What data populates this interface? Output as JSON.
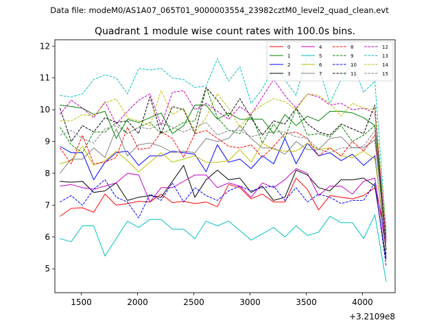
{
  "header": {
    "data_file": "Data file: modeM0/AS1A07_065T01_9000003554_23982cztM0_level2_quad_clean.evt"
  },
  "chart_data": {
    "type": "line",
    "title": "Quadrant 1 module wise count rates with 100.0s bins.",
    "xlabel": "",
    "ylabel": "",
    "x_offset_label": "+3.2109e8",
    "xlim": [
      1265,
      4290
    ],
    "ylim": [
      4.25,
      12.2
    ],
    "x_ticks": [
      1500,
      2000,
      2500,
      3000,
      3500,
      4000
    ],
    "y_ticks": [
      5,
      6,
      7,
      8,
      9,
      10,
      11,
      12
    ],
    "legend_position": "top-right",
    "x": [
      1310,
      1410,
      1510,
      1610,
      1710,
      1810,
      1910,
      2010,
      2110,
      2210,
      2310,
      2410,
      2510,
      2610,
      2710,
      2810,
      2910,
      3010,
      3110,
      3210,
      3310,
      3410,
      3510,
      3610,
      3710,
      3810,
      3910,
      4010,
      4110,
      4210
    ],
    "series": [
      {
        "name": "0",
        "color": "#ff0000",
        "dash": "solid",
        "values": [
          6.65,
          6.9,
          6.92,
          6.78,
          7.35,
          7.0,
          7.05,
          7.12,
          7.1,
          7.35,
          7.08,
          7.12,
          7.05,
          7.1,
          6.95,
          7.65,
          7.55,
          7.2,
          7.35,
          7.1,
          7.1,
          7.85,
          7.5,
          6.85,
          7.3,
          7.25,
          7.2,
          7.3,
          7.55,
          6.1
        ]
      },
      {
        "name": "1",
        "color": "#008000",
        "dash": "solid",
        "values": [
          10.15,
          10.1,
          10.05,
          9.85,
          9.95,
          9.1,
          9.7,
          9.6,
          9.75,
          9.9,
          9.25,
          9.5,
          10.15,
          10.15,
          9.7,
          9.9,
          9.7,
          9.7,
          9.7,
          9.25,
          9.85,
          9.5,
          9.8,
          9.65,
          9.95,
          9.95,
          9.9,
          9.75,
          9.5,
          5.9
        ]
      },
      {
        "name": "2",
        "color": "#0000ff",
        "dash": "solid",
        "values": [
          8.85,
          8.65,
          8.65,
          7.8,
          8.35,
          8.65,
          8.7,
          8.25,
          8.55,
          8.55,
          8.7,
          8.65,
          8.6,
          8.05,
          8.9,
          8.35,
          8.45,
          8.15,
          8.55,
          8.3,
          9.1,
          8.3,
          8.95,
          8.55,
          8.65,
          8.4,
          8.6,
          8.25,
          8.55,
          5.6
        ]
      },
      {
        "name": "3",
        "color": "#000000",
        "dash": "solid",
        "values": [
          7.75,
          7.72,
          7.75,
          7.4,
          7.45,
          7.7,
          7.15,
          7.25,
          7.3,
          7.25,
          7.75,
          8.25,
          7.25,
          7.8,
          8.1,
          7.8,
          7.85,
          7.4,
          7.6,
          7.15,
          7.25,
          8.1,
          7.95,
          7.55,
          7.45,
          7.8,
          7.8,
          7.85,
          7.6,
          5.3
        ]
      },
      {
        "name": "4",
        "color": "#c000c0",
        "dash": "solid",
        "values": [
          7.6,
          7.65,
          7.55,
          7.5,
          7.6,
          7.7,
          8.0,
          7.95,
          7.1,
          7.55,
          7.55,
          7.75,
          7.95,
          7.95,
          7.55,
          7.7,
          7.6,
          7.25,
          7.7,
          7.55,
          7.8,
          8.15,
          8.0,
          7.3,
          7.6,
          7.6,
          7.35,
          7.75,
          7.85,
          5.6
        ]
      },
      {
        "name": "5",
        "color": "#00bfbf",
        "dash": "solid",
        "values": [
          5.95,
          5.85,
          6.35,
          6.35,
          5.4,
          5.95,
          6.5,
          6.3,
          6.55,
          6.55,
          6.25,
          6.25,
          5.95,
          6.5,
          6.35,
          6.5,
          6.2,
          5.9,
          6.1,
          6.3,
          6.0,
          6.35,
          6.05,
          6.15,
          6.65,
          6.45,
          6.45,
          5.95,
          6.7,
          4.6
        ]
      },
      {
        "name": "6",
        "color": "#bfbf00",
        "dash": "solid",
        "values": [
          8.3,
          8.4,
          8.85,
          8.25,
          8.4,
          8.7,
          8.4,
          8.05,
          8.35,
          8.65,
          8.35,
          8.45,
          8.55,
          8.35,
          8.35,
          8.4,
          8.75,
          8.35,
          8.95,
          8.75,
          8.7,
          8.7,
          8.95,
          8.75,
          8.8,
          8.55,
          8.5,
          8.7,
          8.45,
          5.8
        ]
      },
      {
        "name": "7",
        "color": "#808080",
        "dash": "solid",
        "values": [
          8.0,
          8.45,
          8.45,
          8.8,
          8.5,
          9.4,
          8.55,
          8.9,
          8.95,
          8.85,
          8.65,
          8.7,
          8.65,
          9.1,
          9.0,
          9.1,
          9.5,
          9.1,
          8.8,
          8.8,
          8.6,
          9.0,
          8.75,
          8.75,
          9.1,
          9.15,
          8.8,
          8.8,
          9.05,
          5.8
        ]
      },
      {
        "name": "8",
        "color": "#ff0000",
        "dash": "dashed",
        "values": [
          8.8,
          8.3,
          9.2,
          8.3,
          8.35,
          8.5,
          9.45,
          8.75,
          8.8,
          9.3,
          9.1,
          8.5,
          9.25,
          9.35,
          9.1,
          8.85,
          8.8,
          8.9,
          8.5,
          8.85,
          9.25,
          9.3,
          9.1,
          8.55,
          8.8,
          8.55,
          9.0,
          8.7,
          9.2,
          5.9
        ]
      },
      {
        "name": "9",
        "color": "#008000",
        "dash": "dashed",
        "values": [
          9.45,
          8.9,
          8.65,
          9.3,
          9.3,
          9.6,
          9.25,
          9.45,
          9.6,
          9.25,
          9.4,
          9.6,
          9.65,
          10.7,
          9.75,
          9.35,
          9.25,
          9.85,
          8.95,
          9.55,
          9.1,
          10.05,
          9.2,
          9.25,
          9.15,
          9.5,
          9.0,
          9.2,
          9.5,
          5.6
        ]
      },
      {
        "name": "10",
        "color": "#0000ff",
        "dash": "dashed",
        "values": [
          7.1,
          7.3,
          7.0,
          7.5,
          7.8,
          7.25,
          7.1,
          6.6,
          7.35,
          7.15,
          7.7,
          7.1,
          7.55,
          7.3,
          7.15,
          7.45,
          7.6,
          7.45,
          7.55,
          7.6,
          7.15,
          7.55,
          7.1,
          7.35,
          7.25,
          7.05,
          7.15,
          7.15,
          7.7,
          5.1
        ]
      },
      {
        "name": "11",
        "color": "#000000",
        "dash": "dashed",
        "values": [
          10.05,
          9.0,
          9.5,
          9.3,
          9.75,
          9.6,
          9.65,
          9.25,
          10.4,
          9.25,
          10.1,
          10.0,
          9.25,
          10.7,
          10.3,
          9.8,
          10.35,
          9.75,
          9.2,
          9.65,
          9.55,
          10.05,
          9.55,
          9.3,
          9.2,
          9.55,
          9.4,
          9.25,
          10.15,
          5.4
        ]
      },
      {
        "name": "12",
        "color": "#c000c0",
        "dash": "dashed",
        "values": [
          9.85,
          10.3,
          10.05,
          9.75,
          10.25,
          9.55,
          9.95,
          10.3,
          10.5,
          9.5,
          10.55,
          10.6,
          10.0,
          10.2,
          9.95,
          9.7,
          10.1,
          9.85,
          10.4,
          10.95,
          10.45,
          10.05,
          10.5,
          10.4,
          10.15,
          10.2,
          10.0,
          10.05,
          9.9,
          6.0
        ]
      },
      {
        "name": "13",
        "color": "#00bfbf",
        "dash": "dashed",
        "values": [
          10.45,
          10.4,
          10.5,
          10.95,
          11.1,
          11.0,
          10.5,
          11.3,
          11.25,
          11.3,
          11.0,
          10.95,
          10.7,
          10.75,
          11.6,
          10.9,
          11.35,
          10.2,
          10.65,
          11.35,
          10.95,
          10.45,
          11.75,
          11.35,
          10.2,
          10.95,
          11.45,
          10.55,
          10.9,
          6.2
        ]
      },
      {
        "name": "14",
        "color": "#bfbf00",
        "dash": "dashed",
        "values": [
          9.65,
          9.65,
          9.85,
          9.8,
          10.2,
          10.35,
          9.75,
          9.65,
          9.5,
          10.6,
          9.85,
          10.05,
          9.3,
          9.75,
          10.5,
          10.05,
          9.45,
          9.9,
          10.15,
          10.35,
          10.25,
          10.0,
          10.5,
          10.45,
          10.2,
          9.8,
          10.2,
          10.05,
          10.0,
          6.3
        ]
      },
      {
        "name": "15",
        "color": "#808080",
        "dash": "dashed",
        "values": [
          9.2,
          9.35,
          9.1,
          8.95,
          9.4,
          9.5,
          9.25,
          9.45,
          9.4,
          9.6,
          9.45,
          9.3,
          9.45,
          9.6,
          9.2,
          9.35,
          9.35,
          9.15,
          9.25,
          9.3,
          9.3,
          9.15,
          9.1,
          8.75,
          8.65,
          8.8,
          8.8,
          8.85,
          9.35,
          5.6
        ]
      }
    ]
  }
}
